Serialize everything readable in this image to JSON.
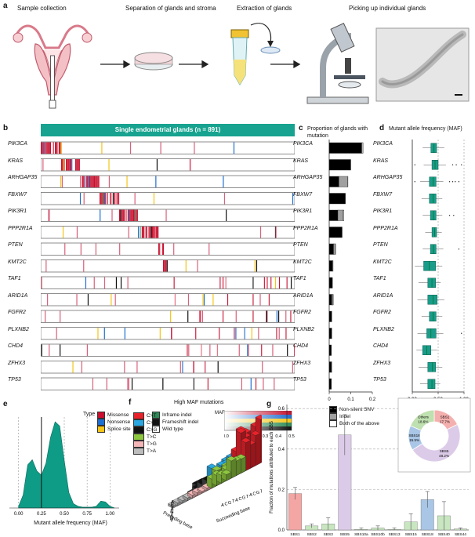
{
  "panel_labels": {
    "a": "a",
    "b": "b",
    "c": "c",
    "d": "d",
    "e": "e",
    "f": "f",
    "g": "g"
  },
  "panel_a": {
    "steps": [
      "Sample collection",
      "Separation of glands and stroma",
      "Extraction of glands",
      "Picking up individual glands"
    ]
  },
  "panel_b": {
    "banner": "Single endometrial glands (n = 891)",
    "genes": [
      "PIK3CA",
      "KRAS",
      "ARHGAP35",
      "FBXW7",
      "PIK3R1",
      "PPP2R1A",
      "PTEN",
      "KMT2C",
      "TAF1",
      "ARID1A",
      "FGFR2",
      "PLXNB2",
      "CHD4",
      "ZFHX3",
      "TP53"
    ],
    "legend_type_title": "Type",
    "legend_types": [
      {
        "label": "Missense",
        "color": "#c8102e"
      },
      {
        "label": "Nonsense",
        "color": "#1f6fd1"
      },
      {
        "label": "Splice site",
        "color": "#f5c518"
      },
      {
        "label": "Inframe indel",
        "color": "#2e8b57"
      },
      {
        "label": "Frameshift indel",
        "color": "#111111"
      },
      {
        "label": "Wild type",
        "color": "#ffffff"
      }
    ],
    "legend_maf_title": "MAF",
    "legend_maf_ticks": [
      "0.0",
      "0.1",
      "0.2",
      "0.3",
      "0.4",
      "0.5"
    ]
  },
  "panel_c": {
    "title": "Proportion of glands with mutation",
    "xticks": [
      "0",
      "0.1",
      "0.2"
    ],
    "legend": [
      "Non-silent SNV",
      "Indel",
      "Both of the above"
    ],
    "colors": {
      "snv": "#000000",
      "indel": "#a0a0a0",
      "both": "#ffffff"
    }
  },
  "panel_d": {
    "title": "Mutant allele frequency (MAF)",
    "xticks": [
      "0.00",
      "0.50",
      "1.00"
    ],
    "box_color": "#1a9c8a"
  },
  "panel_e": {
    "xlabel": "Mutant allele frequency (MAF)",
    "xticks": [
      "0.00",
      "0.25",
      "0.50",
      "0.75",
      "1.00"
    ],
    "fill_color": "#0e9c86"
  },
  "panel_f": {
    "title": "High MAF mutations",
    "legend": [
      {
        "label": "C>T",
        "color": "#e8222a"
      },
      {
        "label": "C>A",
        "color": "#2aa7e0"
      },
      {
        "label": "C>G",
        "color": "#111111"
      },
      {
        "label": "T>C",
        "color": "#8dc63f"
      },
      {
        "label": "T>G",
        "color": "#f4b6b6"
      },
      {
        "label": "T>A",
        "color": "#bdbdbd"
      }
    ],
    "axis_left": "Preceding base",
    "axis_right": "Succeeding base",
    "bases": [
      "A",
      "C",
      "G",
      "T"
    ]
  },
  "panel_g": {
    "ylabel": "Fraction of mutations attributed to each SBS",
    "donut_segments": [
      {
        "label": "SBS1",
        "pct": "17.7%",
        "color": "#f4b0ae"
      },
      {
        "label": "SBS5",
        "pct": "48.2%",
        "color": "#dccbe8"
      },
      {
        "label": "SBS18",
        "pct": "15.5%",
        "color": "#a9c6e6"
      },
      {
        "label": "Others",
        "pct": "18.6%",
        "color": "#bfe0b0"
      }
    ]
  },
  "chart_data": [
    {
      "type": "bar",
      "panel": "c",
      "title": "Proportion of glands with mutation",
      "categories": [
        "PIK3CA",
        "KRAS",
        "ARHGAP35",
        "FBXW7",
        "PIK3R1",
        "PPP2R1A",
        "PTEN",
        "KMT2C",
        "TAF1",
        "ARID1A",
        "FGFR2",
        "PLXNB2",
        "CHD4",
        "ZFHX3",
        "TP53"
      ],
      "series": [
        {
          "name": "Non-silent SNV",
          "values": [
            0.15,
            0.1,
            0.045,
            0.075,
            0.04,
            0.06,
            0.02,
            0.015,
            0.015,
            0.012,
            0.012,
            0.012,
            0.01,
            0.01,
            0.01
          ]
        },
        {
          "name": "Indel",
          "values": [
            0.003,
            0.0,
            0.04,
            0.0,
            0.025,
            0.0,
            0.008,
            0.003,
            0.0,
            0.005,
            0.0,
            0.0,
            0.0,
            0.002,
            0.0
          ]
        },
        {
          "name": "Both of the above",
          "values": [
            0.004,
            0.0,
            0.002,
            0.0,
            0.003,
            0.0,
            0.002,
            0.0,
            0.0,
            0.002,
            0.0,
            0.0,
            0.0,
            0.0,
            0.0
          ]
        }
      ],
      "xlim": [
        0,
        0.2
      ]
    },
    {
      "type": "box",
      "panel": "d",
      "title": "Mutant allele frequency (MAF)",
      "categories": [
        "PIK3CA",
        "KRAS",
        "ARHGAP35",
        "FBXW7",
        "PIK3R1",
        "PPP2R1A",
        "PTEN",
        "KMT2C",
        "TAF1",
        "ARID1A",
        "FGFR2",
        "PLXNB2",
        "CHD4",
        "ZFHX3",
        "TP53"
      ],
      "median": [
        0.42,
        0.44,
        0.4,
        0.4,
        0.41,
        0.43,
        0.41,
        0.33,
        0.38,
        0.4,
        0.4,
        0.36,
        0.28,
        0.39,
        0.38
      ],
      "q1": [
        0.36,
        0.38,
        0.33,
        0.33,
        0.35,
        0.38,
        0.35,
        0.22,
        0.3,
        0.3,
        0.33,
        0.28,
        0.2,
        0.3,
        0.3
      ],
      "q3": [
        0.47,
        0.5,
        0.46,
        0.46,
        0.46,
        0.47,
        0.46,
        0.45,
        0.45,
        0.48,
        0.46,
        0.46,
        0.36,
        0.45,
        0.44
      ],
      "whisker_low": [
        0.2,
        0.22,
        0.15,
        0.18,
        0.2,
        0.25,
        0.2,
        0.05,
        0.12,
        0.1,
        0.18,
        0.1,
        0.08,
        0.12,
        0.15
      ],
      "whisker_high": [
        0.62,
        0.65,
        0.6,
        0.58,
        0.58,
        0.57,
        0.6,
        0.58,
        0.55,
        0.62,
        0.58,
        0.6,
        0.48,
        0.58,
        0.54
      ],
      "xlim": [
        0,
        1
      ]
    },
    {
      "type": "area",
      "panel": "e",
      "xlabel": "Mutant allele frequency (MAF)",
      "x": [
        0.0,
        0.05,
        0.1,
        0.15,
        0.2,
        0.25,
        0.3,
        0.35,
        0.4,
        0.45,
        0.5,
        0.55,
        0.6,
        0.65,
        0.7,
        0.75,
        0.8,
        0.85,
        0.9,
        0.95,
        1.0,
        1.05
      ],
      "y": [
        0.02,
        0.15,
        0.5,
        0.56,
        0.43,
        0.38,
        0.52,
        0.82,
        1.0,
        0.95,
        0.55,
        0.18,
        0.05,
        0.02,
        0.01,
        0.01,
        0.01,
        0.02,
        0.08,
        0.07,
        0.02,
        0.0
      ],
      "vline": 0.25,
      "xlim": [
        -0.1,
        1.1
      ]
    },
    {
      "type": "bar",
      "panel": "g",
      "categories": [
        "SBS1",
        "SBS2",
        "SBS3",
        "SBS5",
        "SBS10a",
        "SBS10b",
        "SBS13",
        "SBS15",
        "SBS18",
        "SBS40",
        "SBS44"
      ],
      "values": [
        0.18,
        0.02,
        0.03,
        0.47,
        0.003,
        0.01,
        0.003,
        0.04,
        0.15,
        0.07,
        0.005
      ],
      "error_high": [
        0.21,
        0.03,
        0.06,
        0.57,
        0.01,
        0.02,
        0.01,
        0.08,
        0.19,
        0.14,
        0.01
      ],
      "colors": [
        "#f4a6a4",
        "#c8e6c0",
        "#c8e6c0",
        "#dccbe8",
        "#c8e6c0",
        "#c8e6c0",
        "#c8e6c0",
        "#c8e6c0",
        "#a9c6e6",
        "#c8e6c0",
        "#c8e6c0"
      ],
      "yticks": [
        0.0,
        0.2,
        0.4,
        0.6
      ],
      "ylim": [
        0,
        0.62
      ]
    }
  ]
}
